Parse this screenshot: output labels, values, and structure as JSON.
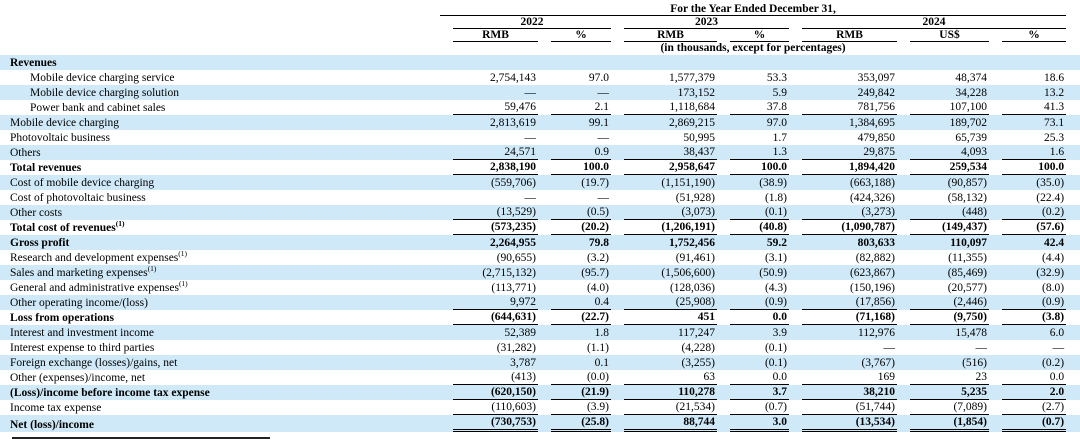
{
  "colors": {
    "row_shade": "#cfe9f8",
    "rule": "#000000"
  },
  "table": {
    "title": "For the Year Ended December 31,",
    "note": "(in thousands, except for percentages)",
    "groups": [
      {
        "year": "2022",
        "cols": [
          "RMB",
          "%"
        ]
      },
      {
        "year": "2023",
        "cols": [
          "RMB",
          "%"
        ]
      },
      {
        "year": "2024",
        "cols": [
          "RMB",
          "US$",
          "%"
        ]
      }
    ],
    "rows": [
      {
        "label": "Revenues",
        "sup": "",
        "bold": true,
        "shaded": true,
        "indent": false,
        "underline": "none",
        "values": [
          "",
          "",
          "",
          "",
          "",
          "",
          ""
        ]
      },
      {
        "label": "Mobile device charging service",
        "sup": "",
        "bold": false,
        "shaded": false,
        "indent": true,
        "underline": "none",
        "values": [
          "2,754,143",
          "97.0",
          "1,577,379",
          "53.3",
          "353,097",
          "48,374",
          "18.6"
        ]
      },
      {
        "label": "Mobile device charging solution",
        "sup": "",
        "bold": false,
        "shaded": true,
        "indent": true,
        "underline": "none",
        "values": [
          "—",
          "—",
          "173,152",
          "5.9",
          "249,842",
          "34,228",
          "13.2"
        ]
      },
      {
        "label": "Power bank and cabinet sales",
        "sup": "",
        "bold": false,
        "shaded": false,
        "indent": true,
        "underline": "single",
        "values": [
          "59,476",
          "2.1",
          "1,118,684",
          "37.8",
          "781,756",
          "107,100",
          "41.3"
        ]
      },
      {
        "label": "Mobile device charging",
        "sup": "",
        "bold": false,
        "shaded": true,
        "indent": false,
        "underline": "none",
        "values": [
          "2,813,619",
          "99.1",
          "2,869,215",
          "97.0",
          "1,384,695",
          "189,702",
          "73.1"
        ]
      },
      {
        "label": "Photovoltaic business",
        "sup": "",
        "bold": false,
        "shaded": false,
        "indent": false,
        "underline": "none",
        "values": [
          "—",
          "—",
          "50,995",
          "1.7",
          "479,850",
          "65,739",
          "25.3"
        ]
      },
      {
        "label": "Others",
        "sup": "",
        "bold": false,
        "shaded": true,
        "indent": false,
        "underline": "single",
        "values": [
          "24,571",
          "0.9",
          "38,437",
          "1.3",
          "29,875",
          "4,093",
          "1.6"
        ]
      },
      {
        "label": "Total revenues",
        "sup": "",
        "bold": true,
        "shaded": false,
        "indent": false,
        "underline": "single",
        "values": [
          "2,838,190",
          "100.0",
          "2,958,647",
          "100.0",
          "1,894,420",
          "259,534",
          "100.0"
        ]
      },
      {
        "label": "Cost of mobile device charging",
        "sup": "",
        "bold": false,
        "shaded": true,
        "indent": false,
        "underline": "none",
        "values": [
          "(559,706)",
          "(19.7)",
          "(1,151,190)",
          "(38.9)",
          "(663,188)",
          "(90,857)",
          "(35.0)"
        ]
      },
      {
        "label": "Cost of photovoltaic business",
        "sup": "",
        "bold": false,
        "shaded": false,
        "indent": false,
        "underline": "none",
        "values": [
          "—",
          "—",
          "(51,928)",
          "(1.8)",
          "(424,326)",
          "(58,132)",
          "(22.4)"
        ]
      },
      {
        "label": "Other costs",
        "sup": "",
        "bold": false,
        "shaded": true,
        "indent": false,
        "underline": "single",
        "values": [
          "(13,529)",
          "(0.5)",
          "(3,073)",
          "(0.1)",
          "(3,273)",
          "(448)",
          "(0.2)"
        ]
      },
      {
        "label": "Total cost of revenues",
        "sup": "(1)",
        "bold": true,
        "shaded": false,
        "indent": false,
        "underline": "single",
        "values": [
          "(573,235)",
          "(20.2)",
          "(1,206,191)",
          "(40.8)",
          "(1,090,787)",
          "(149,437)",
          "(57.6)"
        ]
      },
      {
        "label": "Gross profit",
        "sup": "",
        "bold": true,
        "shaded": true,
        "indent": false,
        "underline": "none",
        "values": [
          "2,264,955",
          "79.8",
          "1,752,456",
          "59.2",
          "803,633",
          "110,097",
          "42.4"
        ]
      },
      {
        "label": "Research and development expenses",
        "sup": "(1)",
        "bold": false,
        "shaded": false,
        "indent": false,
        "underline": "none",
        "values": [
          "(90,655)",
          "(3.2)",
          "(91,461)",
          "(3.1)",
          "(82,882)",
          "(11,355)",
          "(4.4)"
        ]
      },
      {
        "label": "Sales and marketing expenses",
        "sup": "(1)",
        "bold": false,
        "shaded": true,
        "indent": false,
        "underline": "none",
        "values": [
          "(2,715,132)",
          "(95.7)",
          "(1,506,600)",
          "(50.9)",
          "(623,867)",
          "(85,469)",
          "(32.9)"
        ]
      },
      {
        "label": "General and administrative expenses",
        "sup": "(1)",
        "bold": false,
        "shaded": false,
        "indent": false,
        "underline": "none",
        "values": [
          "(113,771)",
          "(4.0)",
          "(128,036)",
          "(4.3)",
          "(150,196)",
          "(20,577)",
          "(8.0)"
        ]
      },
      {
        "label": "Other operating income/(loss)",
        "sup": "",
        "bold": false,
        "shaded": true,
        "indent": false,
        "underline": "single",
        "values": [
          "9,972",
          "0.4",
          "(25,908)",
          "(0.9)",
          "(17,856)",
          "(2,446)",
          "(0.9)"
        ]
      },
      {
        "label": "Loss from operations",
        "sup": "",
        "bold": true,
        "shaded": false,
        "indent": false,
        "underline": "single",
        "values": [
          "(644,631)",
          "(22.7)",
          "451",
          "0.0",
          "(71,168)",
          "(9,750)",
          "(3.8)"
        ]
      },
      {
        "label": "Interest and investment income",
        "sup": "",
        "bold": false,
        "shaded": true,
        "indent": false,
        "underline": "none",
        "values": [
          "52,389",
          "1.8",
          "117,247",
          "3.9",
          "112,976",
          "15,478",
          "6.0"
        ]
      },
      {
        "label": "Interest expense to third parties",
        "sup": "",
        "bold": false,
        "shaded": false,
        "indent": false,
        "underline": "none",
        "values": [
          "(31,282)",
          "(1.1)",
          "(4,228)",
          "(0.1)",
          "—",
          "—",
          "—"
        ]
      },
      {
        "label": "Foreign exchange (losses)/gains, net",
        "sup": "",
        "bold": false,
        "shaded": true,
        "indent": false,
        "underline": "none",
        "values": [
          "3,787",
          "0.1",
          "(3,255)",
          "(0.1)",
          "(3,767)",
          "(516)",
          "(0.2)"
        ]
      },
      {
        "label": "Other (expenses)/income, net",
        "sup": "",
        "bold": false,
        "shaded": false,
        "indent": false,
        "underline": "single",
        "values": [
          "(413)",
          "(0.0)",
          "63",
          "0.0",
          "169",
          "23",
          "0.0"
        ]
      },
      {
        "label": "(Loss)/income before income tax expense",
        "sup": "",
        "bold": true,
        "shaded": true,
        "indent": false,
        "underline": "single",
        "values": [
          "(620,150)",
          "(21.9)",
          "110,278",
          "3.7",
          "38,210",
          "5,235",
          "2.0"
        ]
      },
      {
        "label": "Income tax expense",
        "sup": "",
        "bold": false,
        "shaded": false,
        "indent": false,
        "underline": "single",
        "values": [
          "(110,603)",
          "(3.9)",
          "(21,534)",
          "(0.7)",
          "(51,744)",
          "(7,089)",
          "(2.7)"
        ]
      },
      {
        "label": "Net (loss)/income",
        "sup": "",
        "bold": true,
        "shaded": true,
        "indent": false,
        "underline": "double",
        "values": [
          "(730,753)",
          "(25.8)",
          "88,744",
          "3.0",
          "(13,534)",
          "(1,854)",
          "(0.7)"
        ]
      }
    ]
  }
}
